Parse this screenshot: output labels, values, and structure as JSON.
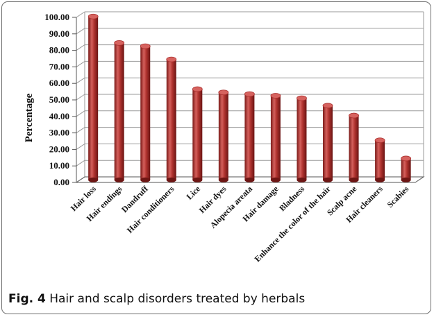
{
  "caption": {
    "label": "Fig. 4",
    "text": "Hair and scalp disorders treated by herbals"
  },
  "chart_data": {
    "type": "bar",
    "ylabel": "Percentage",
    "xlabel": "",
    "ylim": [
      0,
      100
    ],
    "ytick_step": 10,
    "ytick_labels": [
      "0.00",
      "10.00",
      "20.00",
      "30.00",
      "40.00",
      "50.00",
      "60.00",
      "70.00",
      "80.00",
      "90.00",
      "100.00"
    ],
    "grid": true,
    "style": "3d-cylinder",
    "colors": {
      "bar": "#a92d2c",
      "bar_light": "#d6635f",
      "bar_dark": "#6e1614",
      "grid": "#9a9a9a"
    },
    "categories": [
      "Hair loss",
      "Hair endings",
      "Dandruff",
      "Hair conditioners",
      "Lice",
      "Hair dyes",
      "Alopecia areata",
      "Hair damage",
      "Bladness",
      "Enhance the color of the hair",
      "Scalp acne",
      "Hair cleaners",
      "Scabies"
    ],
    "values": [
      99,
      83,
      81,
      73,
      55,
      53,
      52,
      51,
      49.5,
      45,
      39,
      24,
      13
    ]
  }
}
